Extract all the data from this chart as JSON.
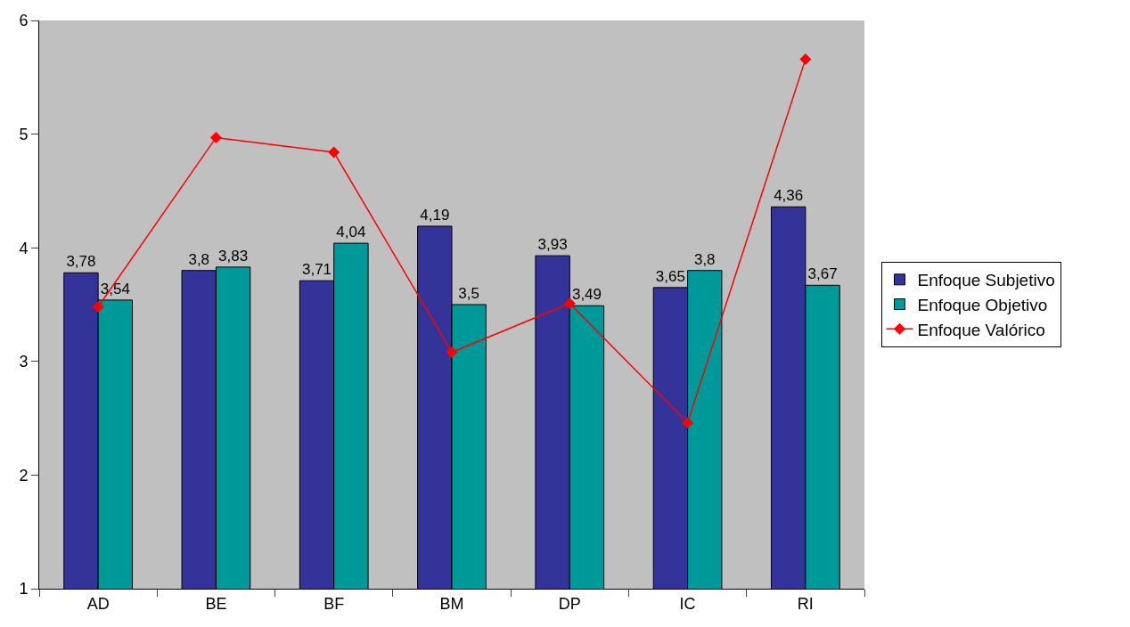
{
  "chart_data": {
    "type": "bar",
    "categories": [
      "AD",
      "BE",
      "BF",
      "BM",
      "DP",
      "IC",
      "RI"
    ],
    "series": [
      {
        "name": "Enfoque Subjetivo",
        "color": "#333399",
        "values": [
          3.78,
          3.8,
          3.71,
          4.19,
          3.93,
          3.65,
          4.36
        ],
        "value_labels": [
          "3,78",
          "3,8",
          "3,71",
          "4,19",
          "3,93",
          "3,65",
          "4,36"
        ]
      },
      {
        "name": "Enfoque Objetivo",
        "color": "#009999",
        "values": [
          3.54,
          3.83,
          4.04,
          3.5,
          3.49,
          3.8,
          3.67
        ],
        "value_labels": [
          "3,54",
          "3,83",
          "4,04",
          "3,5",
          "3,49",
          "3,8",
          "3,67"
        ]
      },
      {
        "name": "Enfoque Valórico",
        "type": "line",
        "color": "#ff0000",
        "marker": "diamond",
        "values": [
          3.48,
          4.97,
          4.84,
          3.08,
          3.51,
          2.46,
          5.66
        ]
      }
    ],
    "ylim": [
      1,
      6
    ],
    "yticks": [
      1,
      2,
      3,
      4,
      5,
      6
    ],
    "grid": false,
    "legend": "right"
  }
}
